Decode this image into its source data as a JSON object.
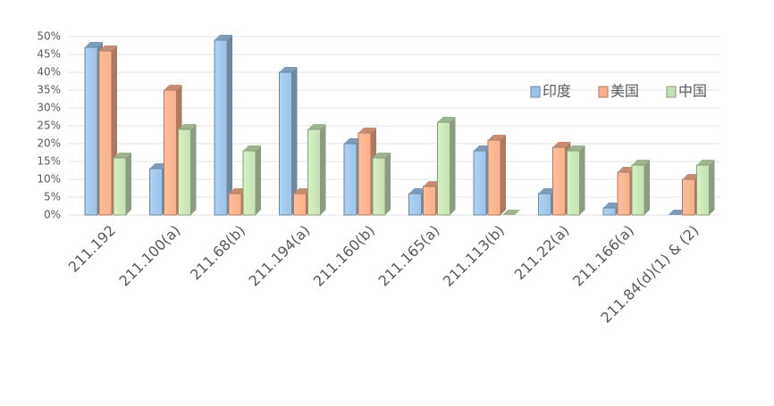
{
  "chart_data": {
    "type": "bar3d",
    "categories": [
      "211.192",
      "211.100(a)",
      "211.68(b)",
      "211.194(a)",
      "211.160(b)",
      "211.165(a)",
      "211.113(b)",
      "211.22(a)",
      "211.166(a)",
      "211.84(d)(1) & (2)"
    ],
    "series": [
      {
        "name": "印度",
        "color": "#9dc3e6",
        "values": [
          47,
          13,
          49,
          40,
          20,
          6,
          18,
          6,
          2,
          0
        ]
      },
      {
        "name": "美国",
        "color": "#f8b08c",
        "values": [
          46,
          35,
          6,
          6,
          23,
          8,
          21,
          19,
          12,
          10
        ]
      },
      {
        "name": "中国",
        "color": "#c5e0b4",
        "values": [
          16,
          24,
          18,
          24,
          16,
          26,
          0,
          18,
          14,
          14
        ]
      }
    ],
    "ylim": [
      0,
      50
    ],
    "yticks": [
      {
        "value": 0,
        "label": "0%"
      },
      {
        "value": 5,
        "label": "5%"
      },
      {
        "value": 10,
        "label": "10%"
      },
      {
        "value": 15,
        "label": "15%"
      },
      {
        "value": 20,
        "label": "20%"
      },
      {
        "value": 25,
        "label": "25%"
      },
      {
        "value": 30,
        "label": "30%"
      },
      {
        "value": 35,
        "label": "35%"
      },
      {
        "value": 40,
        "label": "40%"
      },
      {
        "value": 45,
        "label": "45%"
      },
      {
        "value": 50,
        "label": "50%"
      }
    ],
    "grid": true,
    "legend": "right"
  }
}
